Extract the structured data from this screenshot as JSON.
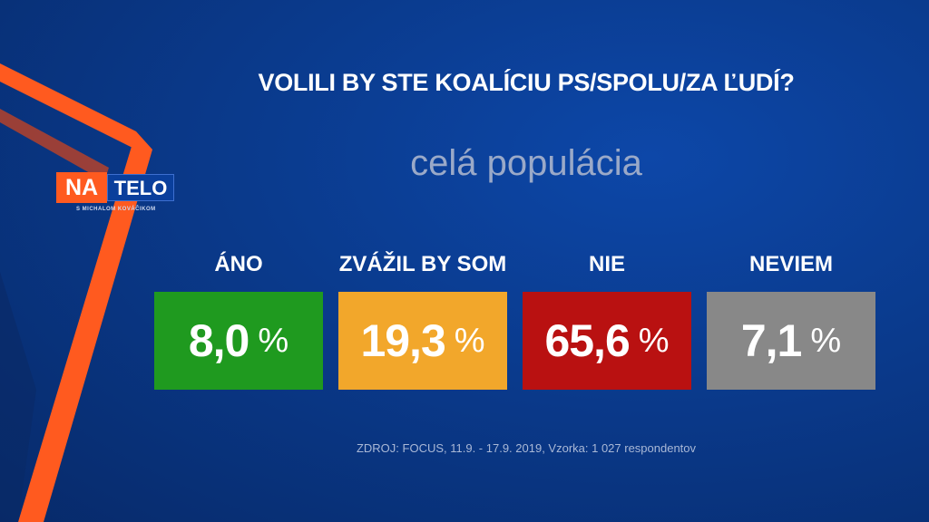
{
  "brand": {
    "logo_na": "NA",
    "logo_telo": "TELO",
    "logo_sub": "S MICHALOM KOVÁČIKOM",
    "accent": "#ff5a1f"
  },
  "chart_data": {
    "type": "table",
    "title": "VOLILI BY STE KOALÍCIU PS/SPOLU/ZA ĽUDÍ?",
    "subtitle": "celá populácia",
    "categories": [
      "ÁNO",
      "ZVÁŽIL BY SOM",
      "NIE",
      "NEVIEM"
    ],
    "values": [
      8.0,
      19.3,
      65.6,
      7.1
    ],
    "value_labels": [
      "8,0",
      "19,3",
      "65,6",
      "7,1"
    ],
    "unit": "%",
    "colors": [
      "#1f9a1f",
      "#f2a72b",
      "#b91111",
      "#888888"
    ]
  },
  "source": "ZDROJ: FOCUS, 11.9. - 17.9. 2019, Vzorka: 1 027 respondentov"
}
